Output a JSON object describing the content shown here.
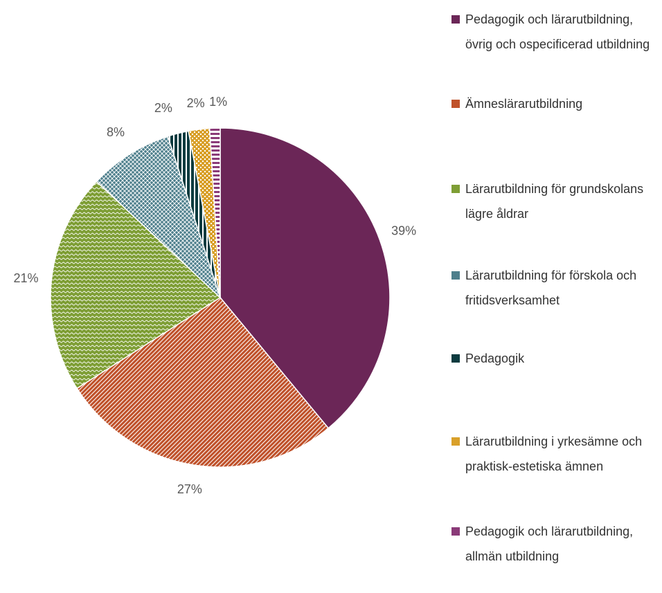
{
  "chart_data": {
    "type": "pie",
    "categories": [
      "Pedagogik och lärarutbildning, övrig och ospecificerad utbildning",
      "Ämneslärarutbildning",
      "Lärarutbildning för grundskolans lägre åldrar",
      "Lärarutbildning för förskola och fritidsverksamhet",
      "Pedagogik",
      "Lärarutbildning i yrkesämne och praktisk-estetiska ämnen",
      "Pedagogik och lärarutbildning, allmän utbildning"
    ],
    "values": [
      39,
      27,
      21,
      8,
      2,
      2,
      1
    ],
    "value_labels": [
      "39%",
      "27%",
      "21%",
      "8%",
      "2%",
      "2%",
      "1%"
    ],
    "colors": [
      "#6b2657",
      "#c0522b",
      "#7e9e35",
      "#4e7f8c",
      "#0c3b3f",
      "#d9a02a",
      "#8a3a78"
    ],
    "legend": "right"
  }
}
